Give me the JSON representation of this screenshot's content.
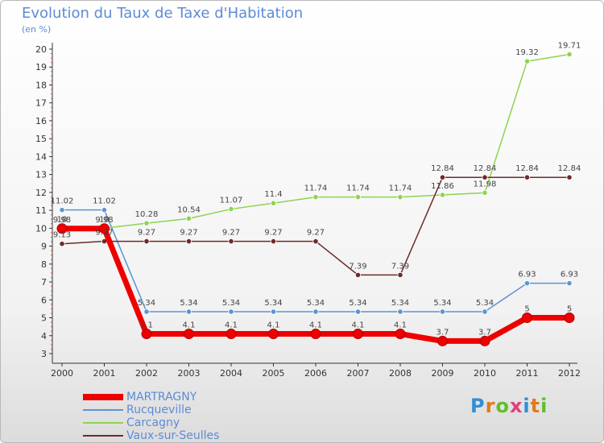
{
  "chart_data": {
    "type": "line",
    "title": "Evolution du Taux de Taxe d'Habitation",
    "subtitle": "(en %)",
    "x": [
      "2000",
      "2001",
      "2002",
      "2003",
      "2004",
      "2005",
      "2006",
      "2007",
      "2008",
      "2009",
      "2010",
      "2011",
      "2012"
    ],
    "ylim": [
      3,
      20
    ],
    "yticks": [
      3,
      4,
      5,
      6,
      7,
      8,
      9,
      10,
      11,
      12,
      13,
      14,
      15,
      16,
      17,
      18,
      19,
      20
    ],
    "grid": false,
    "legend_position": "bottom-left",
    "series": [
      {
        "name": "MARTRAGNY",
        "color": "#ee0000",
        "values": [
          9.98,
          9.98,
          4.1,
          4.1,
          4.1,
          4.1,
          4.1,
          4.1,
          4.1,
          3.7,
          3.7,
          5,
          5
        ],
        "labels": [
          "9.98",
          "9.98",
          "4.1",
          "4.1",
          "4.1",
          "4.1",
          "4.1",
          "4.1",
          "4.1",
          "3.7",
          "3.7",
          "5",
          "5"
        ]
      },
      {
        "name": "Rucqueville",
        "color": "#5b95d1",
        "values": [
          11.02,
          11.02,
          5.34,
          5.34,
          5.34,
          5.34,
          5.34,
          5.34,
          5.34,
          5.34,
          5.34,
          6.93,
          6.93
        ],
        "labels": [
          "11.02",
          "11.02",
          "5.34",
          "5.34",
          "5.34",
          "5.34",
          "5.34",
          "5.34",
          "5.34",
          "5.34",
          "5.34",
          "6.93",
          "6.93"
        ]
      },
      {
        "name": "Carcagny",
        "color": "#8ed44f",
        "values": [
          10,
          10,
          10.28,
          10.54,
          11.07,
          11.4,
          11.74,
          11.74,
          11.74,
          11.86,
          11.98,
          19.32,
          19.71
        ],
        "labels": [
          "10",
          "10",
          "10.28",
          "10.54",
          "11.07",
          "11.4",
          "11.74",
          "11.74",
          "11.74",
          "11.86",
          "11.98",
          "19.32",
          "19.71"
        ]
      },
      {
        "name": "Vaux-sur-Seulles",
        "color": "#6e2a2a",
        "values": [
          9.13,
          9.27,
          9.27,
          9.27,
          9.27,
          9.27,
          9.27,
          7.39,
          7.39,
          12.84,
          12.84,
          12.84,
          12.84
        ],
        "labels": [
          "9.13",
          "9.27",
          "9.27",
          "9.27",
          "9.27",
          "9.27",
          "9.27",
          "7.39",
          "7.39",
          "12.84",
          "12.84",
          "12.84",
          "12.84"
        ]
      }
    ]
  },
  "logo": {
    "text": "Proxiti",
    "colors": [
      "#2f8fd6",
      "#e07a1c",
      "#5fbf2a",
      "#e0407a",
      "#2f8fd6",
      "#e07a1c",
      "#5fbf2a"
    ]
  }
}
